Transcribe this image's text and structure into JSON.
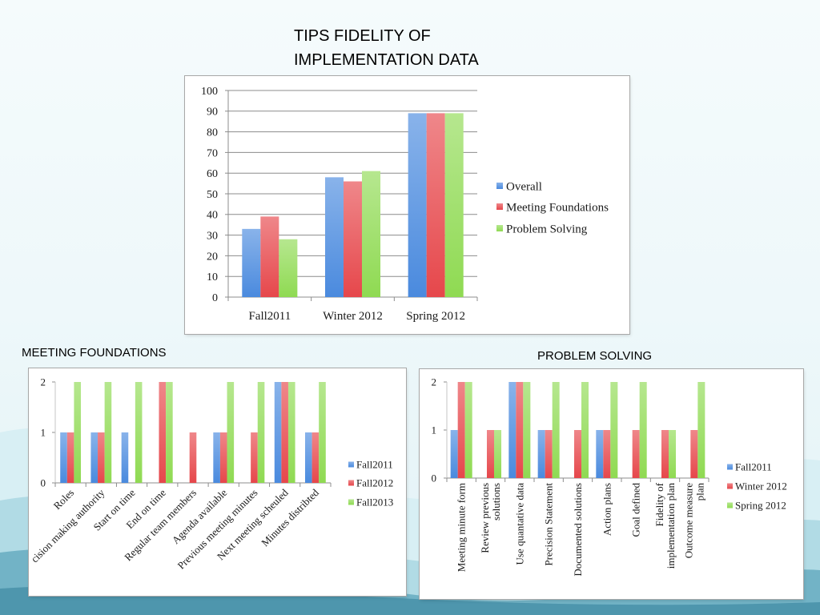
{
  "slide": {
    "title_lines": [
      "TIPS FIDELITY OF",
      "IMPLEMENTATION DATA"
    ]
  },
  "chart_data": [
    {
      "type": "bar",
      "categories": [
        "Fall2011",
        "Winter 2012",
        "Spring 2012"
      ],
      "series": [
        {
          "name": "Overall",
          "values": [
            33,
            58,
            89
          ],
          "color": "#4a8ade"
        },
        {
          "name": "Meeting Foundations",
          "values": [
            39,
            56,
            89
          ],
          "color": "#e6474b"
        },
        {
          "name": "Problem Solving",
          "values": [
            28,
            61,
            89
          ],
          "color": "#8fda52"
        }
      ],
      "ylim": [
        0,
        100
      ],
      "yticks": [
        0,
        10,
        20,
        30,
        40,
        50,
        60,
        70,
        80,
        90,
        100
      ],
      "grid": true,
      "legend": "right"
    },
    {
      "type": "bar",
      "title": "MEETING FOUNDATIONS",
      "categories": [
        "Roles",
        "cision making authority",
        "Start on time",
        "End on time",
        "Regular team members",
        "Agenda available",
        "Previous meeting minutes",
        "Next meeting scheuled",
        "Minutes distribted"
      ],
      "series": [
        {
          "name": "Fall2011",
          "values": [
            1,
            1,
            1,
            0,
            0,
            1,
            0,
            2,
            1
          ],
          "color": "#4a8ade"
        },
        {
          "name": "Fall2012",
          "values": [
            1,
            1,
            0,
            2,
            1,
            1,
            1,
            2,
            1
          ],
          "color": "#e6474b"
        },
        {
          "name": "Fall2013",
          "values": [
            2,
            2,
            2,
            2,
            0,
            2,
            2,
            2,
            2
          ],
          "color": "#8fda52"
        }
      ],
      "ylim": [
        0,
        2
      ],
      "yticks": [
        0,
        1,
        2
      ],
      "grid": false,
      "legend": "right"
    },
    {
      "type": "bar",
      "title": "PROBLEM SOLVING",
      "categories": [
        [
          "Meeting minute form"
        ],
        [
          "Review previous",
          "solutions"
        ],
        [
          "Use quantative data"
        ],
        [
          "Precision Statement"
        ],
        [
          "Documented solutions"
        ],
        [
          "Action plans"
        ],
        [
          "Goal defined"
        ],
        [
          "Fidelity of",
          "implementation plan"
        ],
        [
          "Outcome measure",
          "plan"
        ]
      ],
      "series": [
        {
          "name": "Fall2011",
          "values": [
            1,
            0,
            2,
            1,
            0,
            1,
            0,
            0,
            0
          ],
          "color": "#4a8ade"
        },
        {
          "name": "Winter 2012",
          "values": [
            2,
            1,
            2,
            1,
            1,
            1,
            1,
            1,
            1
          ],
          "color": "#e6474b"
        },
        {
          "name": "Spring 2012",
          "values": [
            2,
            1,
            2,
            2,
            2,
            2,
            2,
            1,
            2
          ],
          "color": "#8fda52"
        }
      ],
      "ylim": [
        0,
        2
      ],
      "yticks": [
        0,
        1,
        2
      ],
      "grid": false,
      "legend": "right"
    }
  ]
}
